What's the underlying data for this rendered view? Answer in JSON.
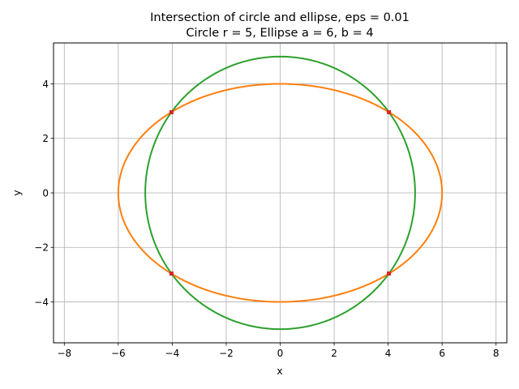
{
  "chart_data": {
    "type": "line",
    "title": "Intersection of circle and ellipse, eps = 0.01",
    "subtitle": "Circle r = 5, Ellipse a = 6, b = 4",
    "xlabel": "x",
    "ylabel": "y",
    "xlim": [
      -8.4,
      8.4
    ],
    "ylim": [
      -5.5,
      5.5
    ],
    "xticks": [
      -8,
      -6,
      -4,
      -2,
      0,
      2,
      4,
      6,
      8
    ],
    "yticks": [
      -4,
      -2,
      0,
      2,
      4
    ],
    "xtick_labels": [
      "−8",
      "−6",
      "−4",
      "−2",
      "0",
      "2",
      "4",
      "6",
      "8"
    ],
    "ytick_labels": [
      "−4",
      "−2",
      "0",
      "2",
      "4"
    ],
    "grid": true,
    "aspect": "equal",
    "series": [
      {
        "shape": "circle",
        "center": [
          0,
          0
        ],
        "r": 5,
        "color": "#2ca02c"
      },
      {
        "shape": "ellipse",
        "center": [
          0,
          0
        ],
        "a": 6,
        "b": 4,
        "color": "#ff7f0e"
      }
    ],
    "intersection_points": {
      "color": "#d62728",
      "points": [
        [
          -4.03,
          2.96
        ],
        [
          4.03,
          2.96
        ],
        [
          -4.03,
          -2.96
        ],
        [
          4.03,
          -2.96
        ]
      ]
    }
  }
}
